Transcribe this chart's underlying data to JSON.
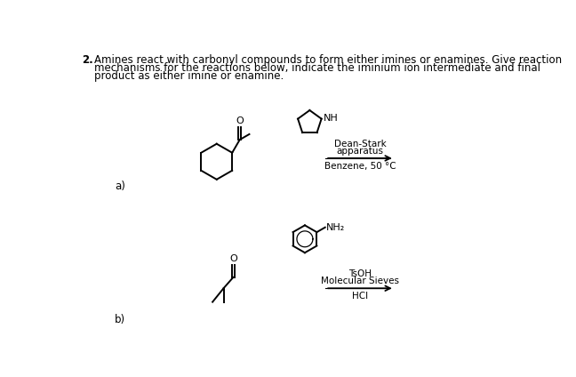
{
  "title_number": "2.",
  "title_text_line1": "Amines react with carbonyl compounds to form either imines or enamines. Give reaction",
  "title_text_line2": "mechanisms for the reactions below, indicate the iminium ion intermediate and final",
  "title_text_line3": "product as either imine or enamine.",
  "part_a_label": "a)",
  "part_b_label": "b)",
  "reaction_a_line1": "Dean-Stark",
  "reaction_a_line2": "apparatus",
  "reaction_a_line3": "Benzene, 50 °C",
  "reaction_b_line1": "TsOH",
  "reaction_b_line2": "Molecular Sieves",
  "reaction_b_line3": "HCl",
  "amine_a_label": "NH",
  "amine_b_label": "NH₂",
  "bg_color": "#ffffff",
  "text_color": "#000000",
  "font_size_body": 8.5,
  "font_size_small": 7.5
}
